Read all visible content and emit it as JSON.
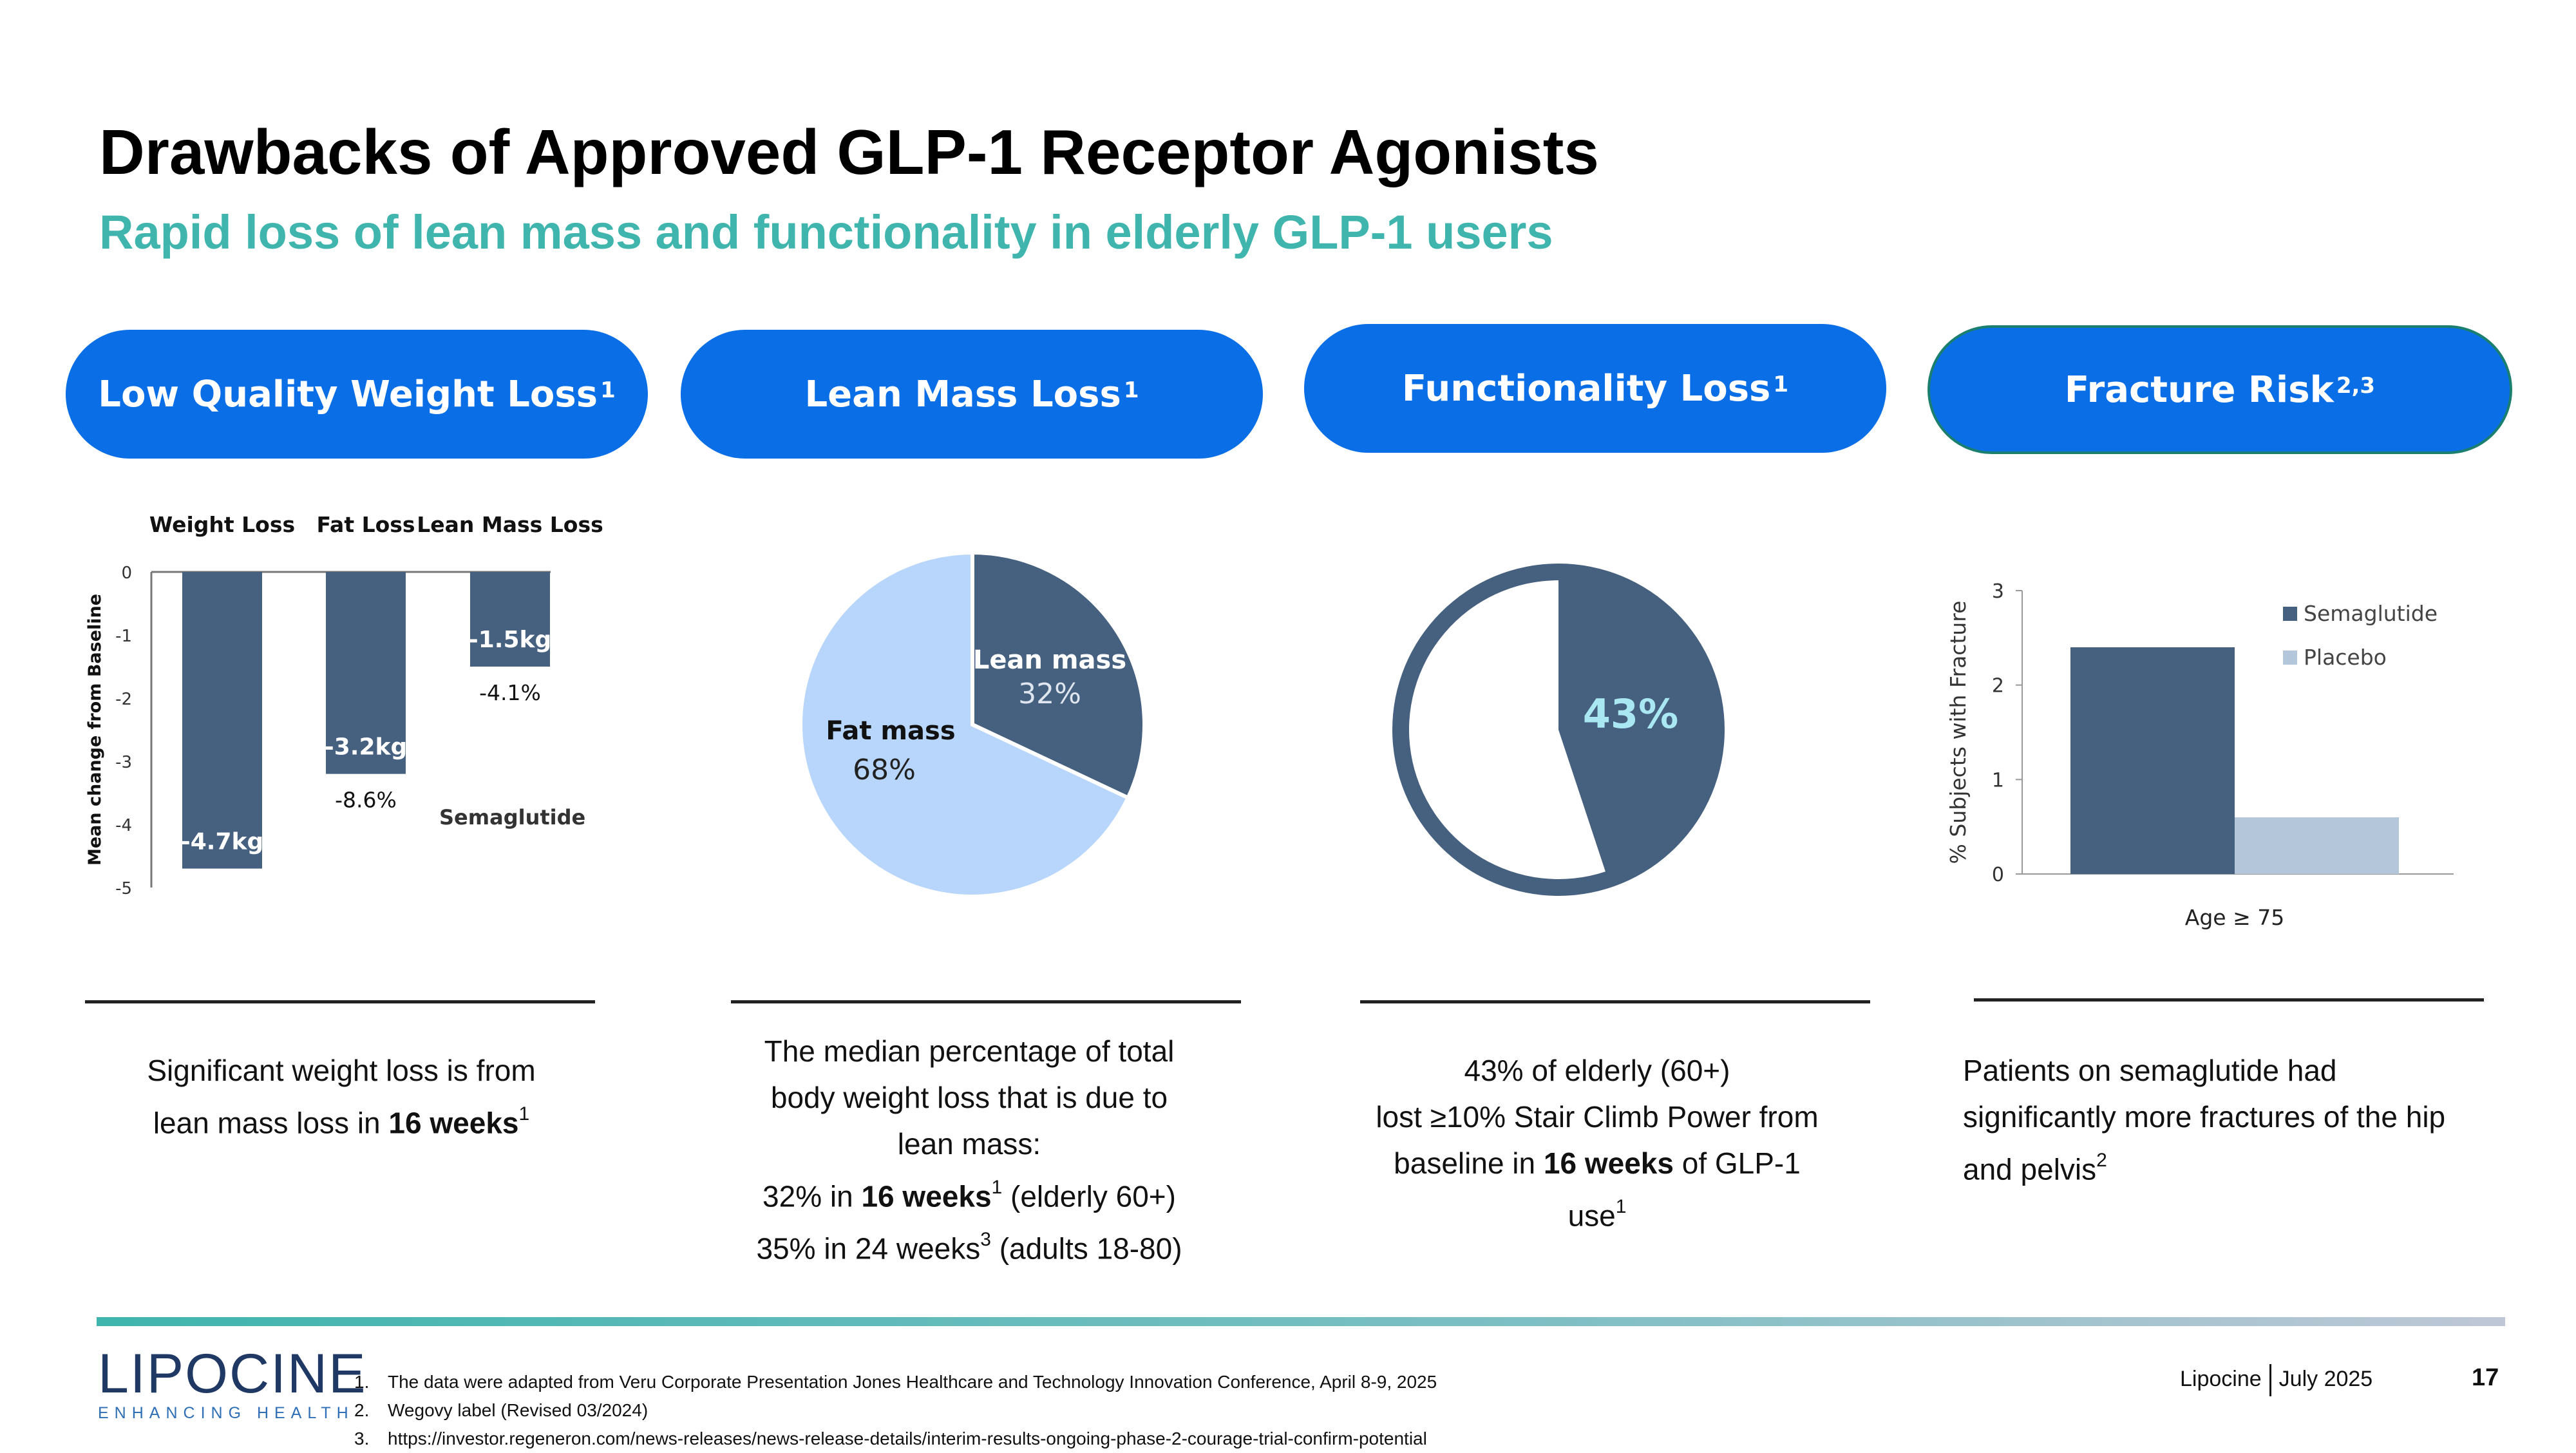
{
  "title": "Drawbacks of Approved GLP-1 Receptor Agonists",
  "subtitle": "Rapid loss of lean mass and functionality in elderly GLP-1 users",
  "pills": [
    {
      "label": "Low Quality Weight Loss",
      "sup": "1"
    },
    {
      "label": "Lean Mass Loss",
      "sup": "1"
    },
    {
      "label": "Functionality Loss",
      "sup": "1"
    },
    {
      "label": "Fracture Risk",
      "sup": "2,3"
    }
  ],
  "captions": {
    "c1": {
      "l1": "Significant weight loss is from",
      "l2a": "lean mass loss in ",
      "l2b": "16 weeks",
      "l2sup": "1"
    },
    "c2": {
      "l1": "The median percentage of total",
      "l2": "body weight loss that is due to",
      "l3": "lean mass:",
      "l4a": "32% in ",
      "l4b": "16 weeks",
      "l4sup": "1",
      "l4c": " (elderly 60+)",
      "l5a": "35% in 24 weeks",
      "l5sup": "3",
      "l5c": " (adults 18-80)"
    },
    "c3": {
      "l1": "43% of elderly (60+)",
      "l2": "lost ≥10% Stair Climb Power from",
      "l3a": "baseline in ",
      "l3b": "16 weeks",
      "l3c": " of GLP-1",
      "l4": "use",
      "l4sup": "1"
    },
    "c4": {
      "l1": "Patients on semaglutide had",
      "l2": "significantly more fractures of the hip",
      "l3": "and pelvis",
      "l3sup": "2"
    }
  },
  "footer": {
    "logo_word": "LIPOCINE",
    "logo_tag": "ENHANCING HEALTH",
    "refs": [
      {
        "num": "1.",
        "text": "The data were adapted from Veru Corporate Presentation Jones Healthcare and Technology Innovation Conference, April 8-9, 2025"
      },
      {
        "num": "2.",
        "text": "Wegovy label (Revised 03/2024)"
      },
      {
        "num": "3.",
        "text": "https://investor.regeneron.com/news-releases/news-release-details/interim-results-ongoing-phase-2-courage-trial-confirm-potential"
      }
    ],
    "brand": "Lipocine",
    "date": "July 2025",
    "page": "17"
  },
  "colors": {
    "accent": "#3fb5ad",
    "pill": "#0a6ee6",
    "dark_bar": "#46607f",
    "light": "#b8d6fb",
    "placebo": "#b4c7da"
  },
  "chart_data": [
    {
      "type": "bar",
      "categories": [
        "Weight Loss",
        "Fat Loss",
        "Lean Mass Loss"
      ],
      "series": [
        {
          "name": "Semaglutide",
          "values": [
            -4.7,
            -3.2,
            -1.5
          ]
        }
      ],
      "value_labels": [
        "-4.7kg",
        "-3.2kg",
        "-1.5kg"
      ],
      "pct_labels": [
        "",
        "-8.6%",
        "-4.1%"
      ],
      "ylabel": "Mean change from Baseline",
      "ylim": [
        -5,
        0
      ],
      "yticks": [
        "0",
        "-1",
        "-2",
        "-3",
        "-4",
        "-5"
      ],
      "annotation": "Semaglutide"
    },
    {
      "type": "pie",
      "slices": [
        {
          "label": "Lean mass",
          "value": 32,
          "text": "32%"
        },
        {
          "label": "Fat mass",
          "value": 68,
          "text": "68%"
        }
      ]
    },
    {
      "type": "pie",
      "slices": [
        {
          "value": 43
        },
        {
          "value": 57
        }
      ],
      "center_label": "43%"
    },
    {
      "type": "bar",
      "categories": [
        "Age  ≥  75"
      ],
      "series": [
        {
          "name": "Semaglutide",
          "values": [
            2.4
          ]
        },
        {
          "name": "Placebo",
          "values": [
            0.6
          ]
        }
      ],
      "ylabel": "% Subjects with Fracture",
      "ylim": [
        0,
        3
      ],
      "yticks": [
        "0",
        "1",
        "2",
        "3"
      ],
      "legend": "top-right"
    }
  ]
}
